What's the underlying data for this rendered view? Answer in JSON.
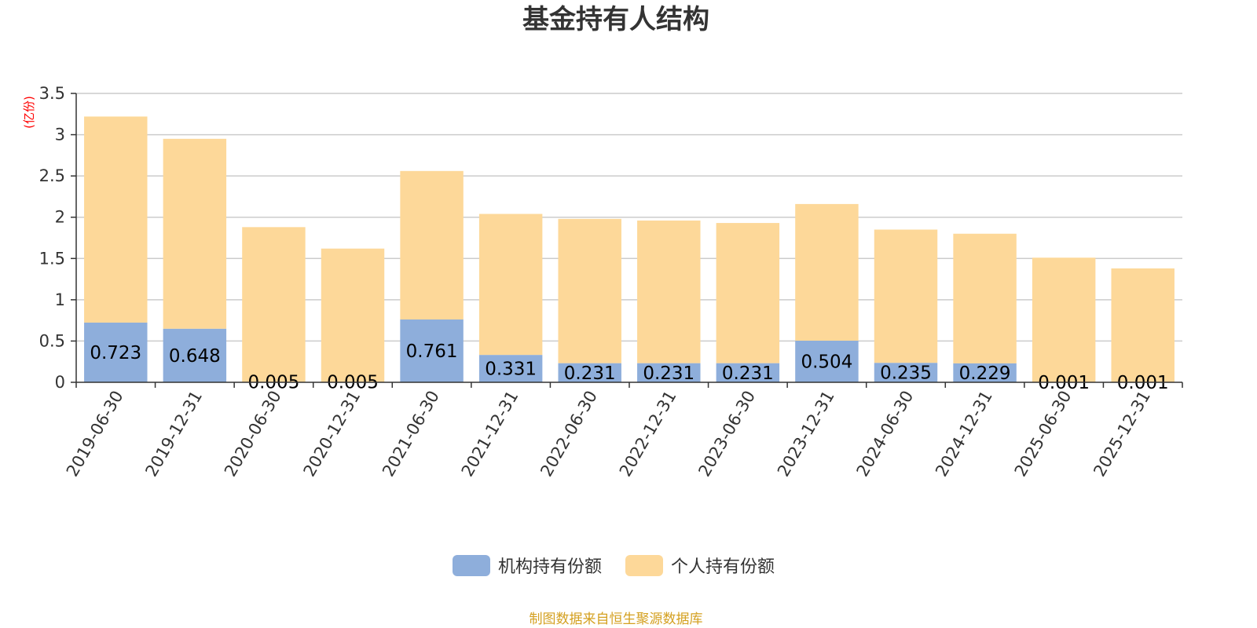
{
  "chart_data": {
    "type": "bar",
    "stacked": true,
    "title": "基金持有人结构",
    "unit_label": "(亿份)",
    "categories": [
      "2019-06-30",
      "2019-12-31",
      "2020-06-30",
      "2020-12-31",
      "2021-06-30",
      "2021-12-31",
      "2022-06-30",
      "2022-12-31",
      "2023-06-30",
      "2023-12-31",
      "2024-06-30",
      "2024-12-31",
      "2025-06-30",
      "2025-12-31"
    ],
    "series": [
      {
        "name": "机构持有份额",
        "color": "#8eaedb",
        "values": [
          0.723,
          0.648,
          0.005,
          0.005,
          0.761,
          0.331,
          0.231,
          0.231,
          0.231,
          0.504,
          0.235,
          0.229,
          0.001,
          0.001
        ],
        "labels": [
          "0.723",
          "0.648",
          "0.005",
          "0.005",
          "0.761",
          "0.331",
          "0.231",
          "0.231",
          "0.231",
          "0.504",
          "0.235",
          "0.229",
          "0.001",
          "0.001"
        ]
      },
      {
        "name": "个人持有份额",
        "color": "#fdd899",
        "values": [
          2.497,
          2.302,
          1.875,
          1.615,
          1.799,
          1.709,
          1.749,
          1.729,
          1.699,
          1.656,
          1.615,
          1.571,
          1.509,
          1.379
        ]
      }
    ],
    "ylim": [
      0,
      3.5
    ],
    "yticks": [
      "0",
      "0.5",
      "1",
      "1.5",
      "2",
      "2.5",
      "3",
      "3.5"
    ],
    "ytick_values": [
      0,
      0.5,
      1,
      1.5,
      2,
      2.5,
      3,
      3.5
    ],
    "grid": true,
    "legend_position": "bottom-center"
  },
  "source_note": "制图数据来自恒生聚源数据库",
  "colors": {
    "unit_label": "#ff0000",
    "source_note": "#d4a020",
    "grid": "#cccccc",
    "axis": "#333333"
  }
}
